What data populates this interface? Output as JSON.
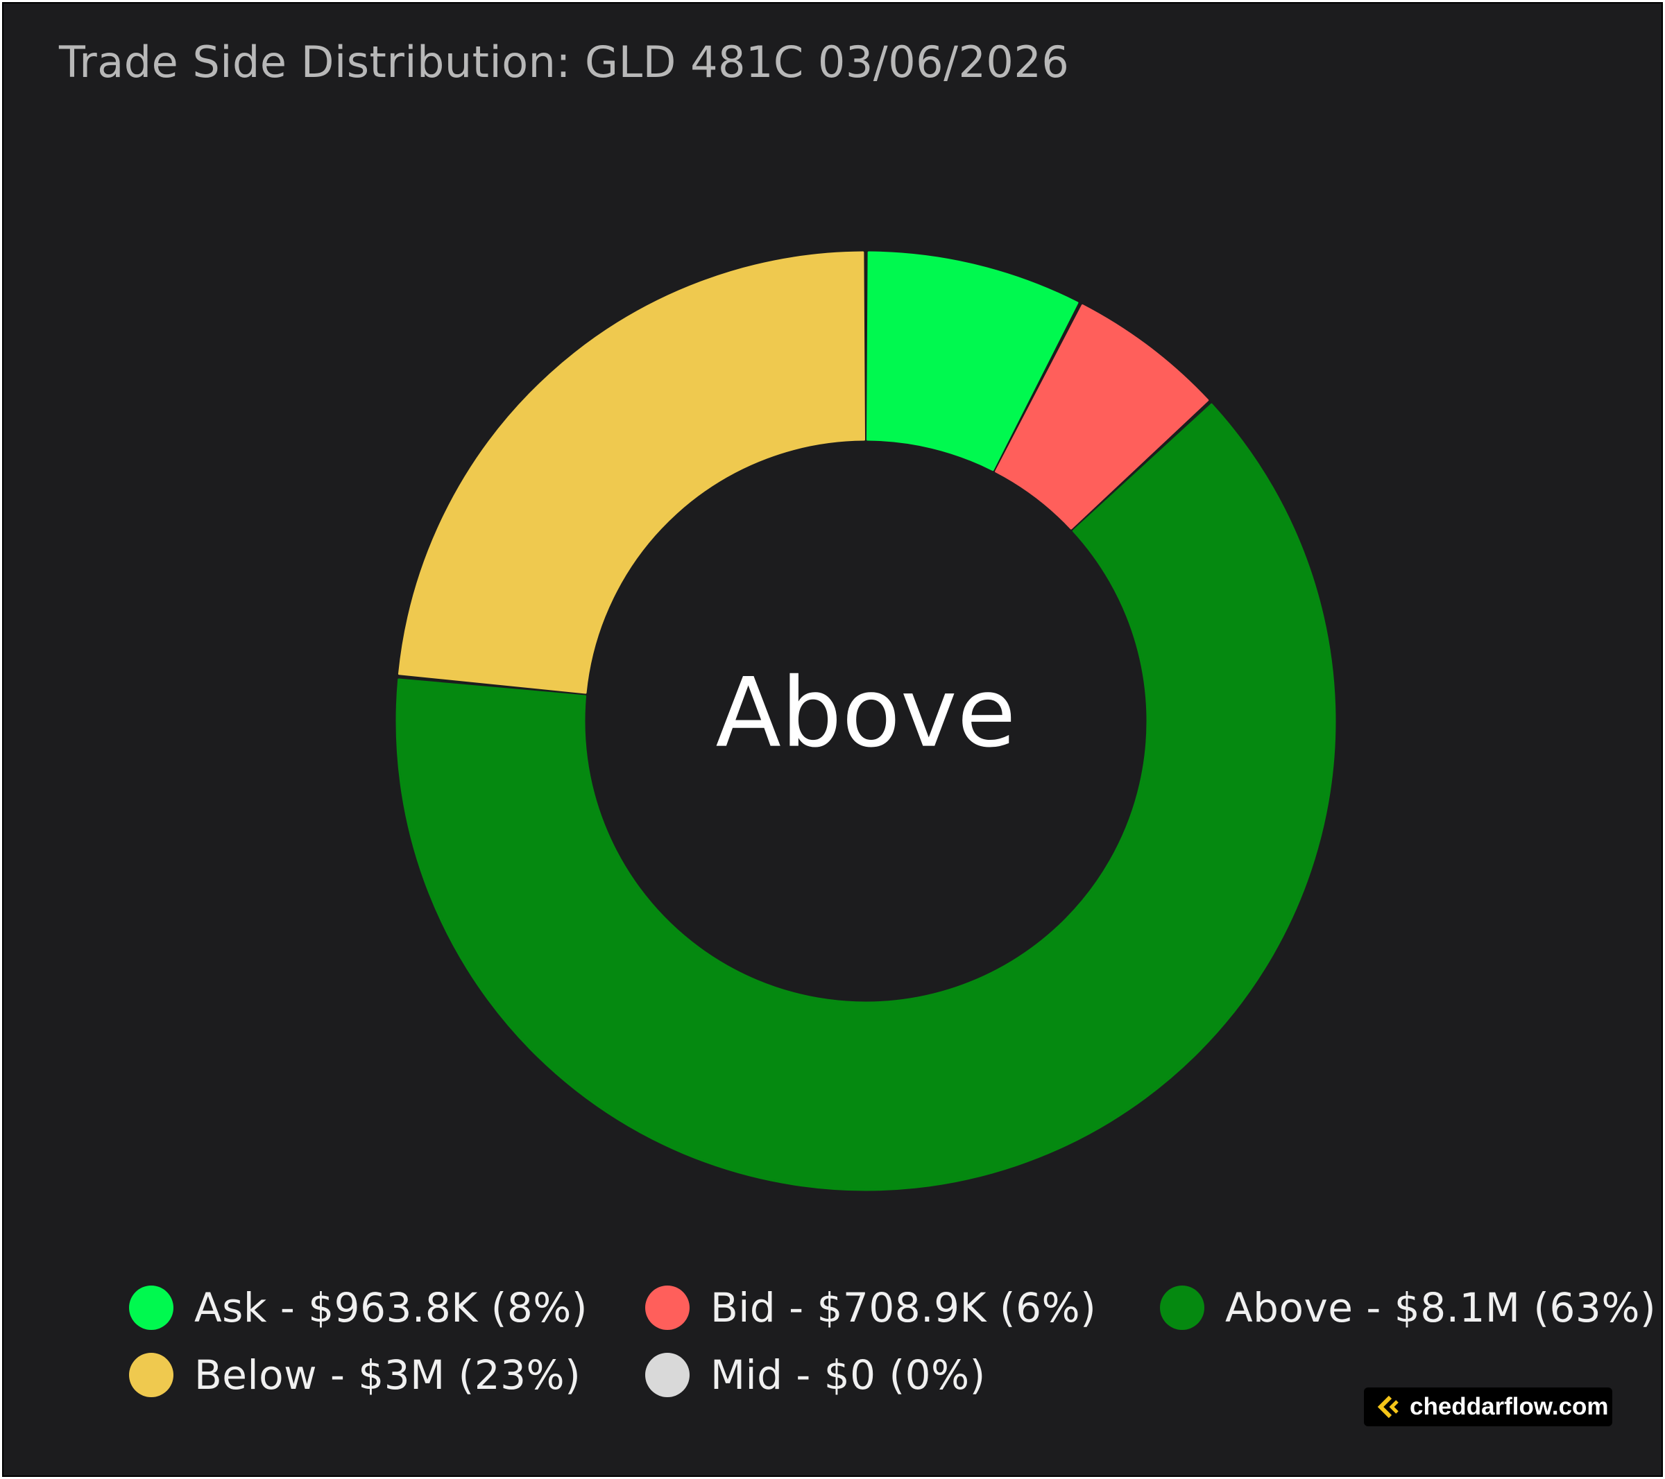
{
  "chart_data": {
    "type": "pie",
    "title": "Trade Side Distribution: GLD 481C 03/06/2026",
    "center_label": "Above",
    "legend_position": "bottom",
    "slices": [
      {
        "name": "Ask",
        "value": 963.8,
        "percent": 8,
        "label": "Ask - $963.8K (8%)",
        "color": "#00f94f"
      },
      {
        "name": "Bid",
        "value": 708.9,
        "percent": 6,
        "label": "Bid - $708.9K (6%)",
        "color": "#ff5f5b"
      },
      {
        "name": "Above",
        "value": 8100,
        "percent": 63,
        "label": "Above - $8.1M (63%)",
        "color": "#058910"
      },
      {
        "name": "Below",
        "value": 3000,
        "percent": 23,
        "label": "Below - $3M (23%)",
        "color": "#efc94f"
      },
      {
        "name": "Mid",
        "value": 0,
        "percent": 0,
        "label": "Mid - $0 (0%)",
        "color": "#d9d9d9"
      }
    ],
    "background": "#1c1c1e"
  },
  "watermark": {
    "text": "cheddarflow.com",
    "icon": "cheddarflow-logo-icon",
    "accent": "#f5c518"
  }
}
